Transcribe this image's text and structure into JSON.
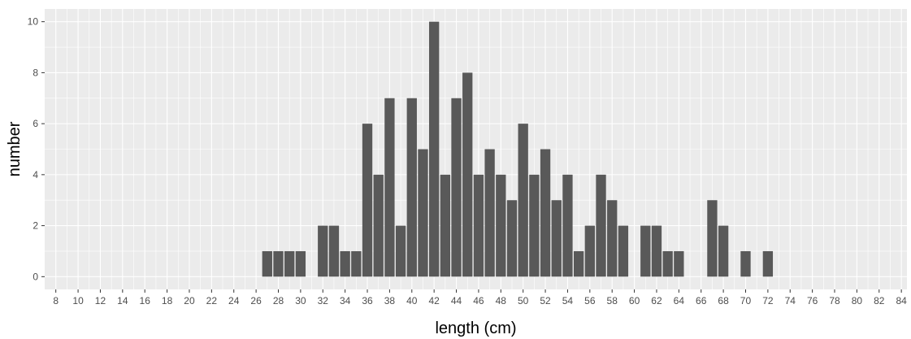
{
  "chart_data": {
    "type": "bar",
    "xlabel": "length (cm)",
    "ylabel": "number",
    "xlim": [
      7,
      84.5
    ],
    "ylim": [
      -0.5,
      10.5
    ],
    "x_ticks": [
      8,
      10,
      12,
      14,
      16,
      18,
      20,
      22,
      24,
      26,
      28,
      30,
      32,
      34,
      36,
      38,
      40,
      42,
      44,
      46,
      48,
      50,
      52,
      54,
      56,
      58,
      60,
      62,
      64,
      66,
      68,
      70,
      72,
      74,
      76,
      78,
      80,
      82,
      84
    ],
    "y_ticks": [
      0,
      2,
      4,
      6,
      8,
      10
    ],
    "categories": [
      27,
      28,
      29,
      30,
      32,
      33,
      34,
      35,
      36,
      37,
      38,
      39,
      40,
      41,
      42,
      43,
      44,
      45,
      46,
      47,
      48,
      49,
      50,
      51,
      52,
      53,
      54,
      55,
      56,
      57,
      58,
      59,
      61,
      62,
      63,
      64,
      67,
      68,
      70,
      72
    ],
    "values": [
      1,
      1,
      1,
      1,
      2,
      2,
      1,
      1,
      6,
      4,
      7,
      2,
      7,
      5,
      10,
      4,
      7,
      8,
      4,
      5,
      4,
      3,
      6,
      4,
      5,
      3,
      4,
      1,
      2,
      4,
      3,
      2,
      2,
      2,
      1,
      1,
      3,
      2,
      1,
      1
    ],
    "legend": "none",
    "grid": true,
    "bar_color": "#595959",
    "panel_background": "#ebebeb",
    "grid_color": "#ffffff"
  }
}
